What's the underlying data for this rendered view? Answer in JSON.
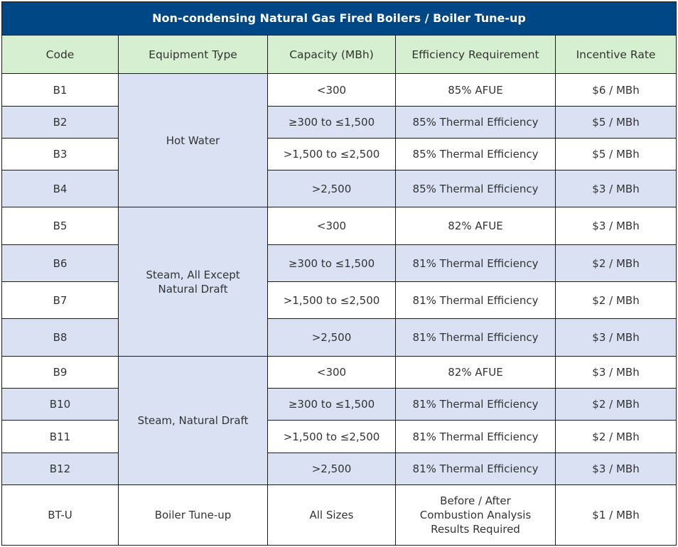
{
  "table": {
    "title": "Non-condensing Natural Gas Fired Boilers / Boiler Tune-up",
    "columns": [
      "Code",
      "Equipment Type",
      "Capacity (MBh)",
      "Efficiency Requirement",
      "Incentive Rate"
    ],
    "colors": {
      "title_bg": "#004785",
      "header_bg": "#d6efd1",
      "alt_row_bg": "#d9e1f2"
    },
    "groups": [
      {
        "equipment_type": "Hot Water",
        "rows": [
          {
            "code": "B1",
            "capacity": "<300",
            "efficiency": "85% AFUE",
            "rate": "$6 / MBh"
          },
          {
            "code": "B2",
            "capacity": "≥300 to ≤1,500",
            "efficiency": "85% Thermal Efficiency",
            "rate": "$5 / MBh"
          },
          {
            "code": "B3",
            "capacity": ">1,500 to ≤2,500",
            "efficiency": "85% Thermal Efficiency",
            "rate": "$5 / MBh"
          },
          {
            "code": "B4",
            "capacity": ">2,500",
            "efficiency": "85% Thermal Efficiency",
            "rate": "$3 / MBh"
          }
        ]
      },
      {
        "equipment_type": "Steam, All Except Natural Draft",
        "rows": [
          {
            "code": "B5",
            "capacity": "<300",
            "efficiency": "82% AFUE",
            "rate": "$3 / MBh"
          },
          {
            "code": "B6",
            "capacity": "≥300 to ≤1,500",
            "efficiency": "81% Thermal Efficiency",
            "rate": "$2 / MBh"
          },
          {
            "code": "B7",
            "capacity": ">1,500 to ≤2,500",
            "efficiency": "81% Thermal Efficiency",
            "rate": "$2 / MBh"
          },
          {
            "code": "B8",
            "capacity": ">2,500",
            "efficiency": "81% Thermal Efficiency",
            "rate": "$3 / MBh"
          }
        ]
      },
      {
        "equipment_type": "Steam, Natural Draft",
        "rows": [
          {
            "code": "B9",
            "capacity": "<300",
            "efficiency": "82% AFUE",
            "rate": "$3 / MBh"
          },
          {
            "code": "B10",
            "capacity": "≥300 to ≤1,500",
            "efficiency": "81% Thermal Efficiency",
            "rate": "$2 / MBh"
          },
          {
            "code": "B11",
            "capacity": ">1,500 to ≤2,500",
            "efficiency": "81% Thermal Efficiency",
            "rate": "$2 / MBh"
          },
          {
            "code": "B12",
            "capacity": ">2,500",
            "efficiency": "81% Thermal Efficiency",
            "rate": "$3 / MBh"
          }
        ]
      },
      {
        "equipment_type": "Boiler Tune-up",
        "rows": [
          {
            "code": "BT-U",
            "capacity": "All Sizes",
            "efficiency": "Before / After Combustion Analysis Results Required",
            "rate": "$1 / MBh"
          }
        ]
      }
    ]
  }
}
